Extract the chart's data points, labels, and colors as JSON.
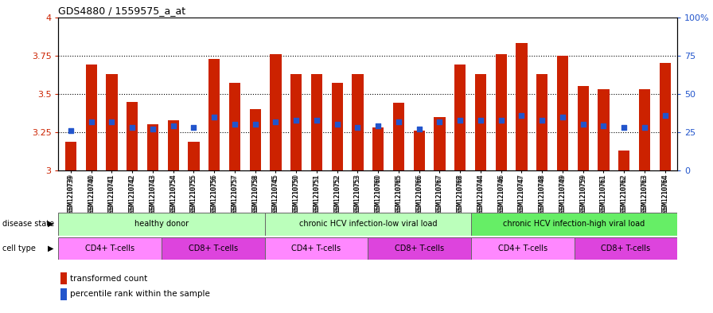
{
  "title": "GDS4880 / 1559575_a_at",
  "samples": [
    "GSM1210739",
    "GSM1210740",
    "GSM1210741",
    "GSM1210742",
    "GSM1210743",
    "GSM1210754",
    "GSM1210755",
    "GSM1210756",
    "GSM1210757",
    "GSM1210758",
    "GSM1210745",
    "GSM1210750",
    "GSM1210751",
    "GSM1210752",
    "GSM1210753",
    "GSM1210760",
    "GSM1210765",
    "GSM1210766",
    "GSM1210767",
    "GSM1210768",
    "GSM1210744",
    "GSM1210746",
    "GSM1210747",
    "GSM1210748",
    "GSM1210749",
    "GSM1210759",
    "GSM1210761",
    "GSM1210762",
    "GSM1210763",
    "GSM1210764"
  ],
  "transformed_count": [
    3.19,
    3.69,
    3.63,
    3.45,
    3.3,
    3.33,
    3.19,
    3.73,
    3.57,
    3.4,
    3.76,
    3.63,
    3.63,
    3.57,
    3.63,
    3.28,
    3.44,
    3.26,
    3.35,
    3.69,
    3.63,
    3.76,
    3.83,
    3.63,
    3.75,
    3.55,
    3.53,
    3.13,
    3.53,
    3.7
  ],
  "percentile_rank": [
    26,
    32,
    32,
    28,
    27,
    29,
    28,
    35,
    30,
    30,
    32,
    33,
    33,
    30,
    28,
    29,
    32,
    27,
    32,
    33,
    33,
    33,
    36,
    33,
    35,
    30,
    29,
    28,
    28,
    36
  ],
  "y_min": 3.0,
  "y_max": 4.0,
  "y_ticks_left": [
    3.0,
    3.25,
    3.5,
    3.75,
    4.0
  ],
  "y_ticks_right": [
    0,
    25,
    50,
    75,
    100
  ],
  "bar_color": "#cc2200",
  "dot_color": "#2255cc",
  "disease_states": [
    {
      "label": "healthy donor",
      "start": 0,
      "end": 10,
      "color": "#bbffbb"
    },
    {
      "label": "chronic HCV infection-low viral load",
      "start": 10,
      "end": 20,
      "color": "#bbffbb"
    },
    {
      "label": "chronic HCV infection-high viral load",
      "start": 20,
      "end": 30,
      "color": "#66ee66"
    }
  ],
  "cell_types": [
    {
      "label": "CD4+ T-cells",
      "start": 0,
      "end": 5,
      "color": "#ff88ff"
    },
    {
      "label": "CD8+ T-cells",
      "start": 5,
      "end": 10,
      "color": "#dd44dd"
    },
    {
      "label": "CD4+ T-cells",
      "start": 10,
      "end": 15,
      "color": "#ff88ff"
    },
    {
      "label": "CD8+ T-cells",
      "start": 15,
      "end": 20,
      "color": "#dd44dd"
    },
    {
      "label": "CD4+ T-cells",
      "start": 20,
      "end": 25,
      "color": "#ff88ff"
    },
    {
      "label": "CD8+ T-cells",
      "start": 25,
      "end": 30,
      "color": "#dd44dd"
    }
  ]
}
